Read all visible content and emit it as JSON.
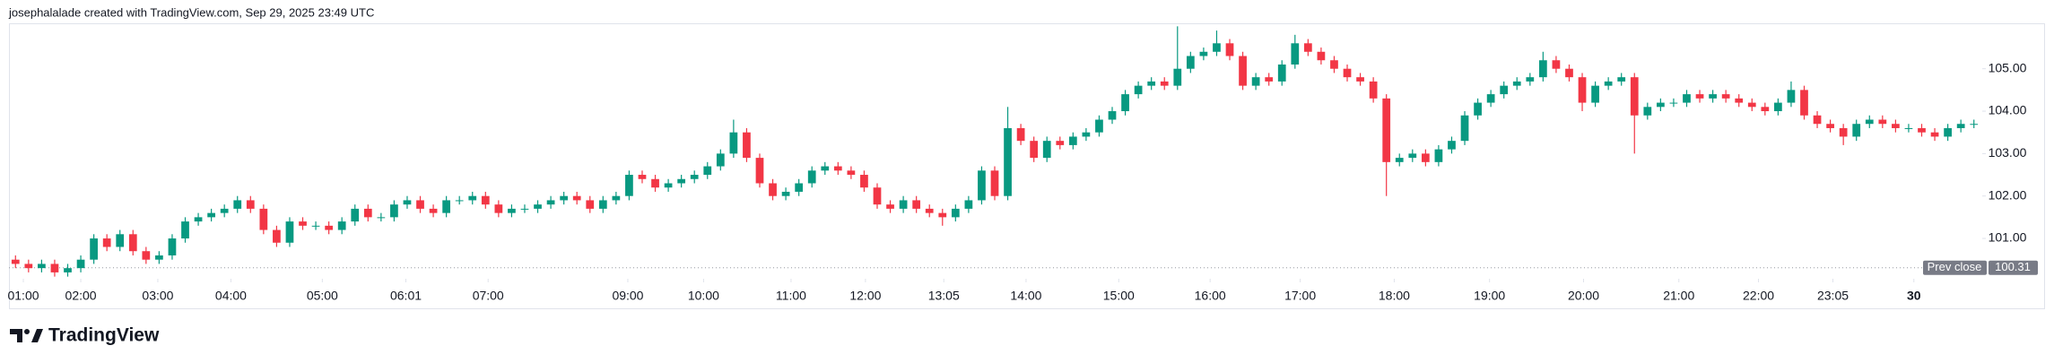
{
  "chart_data": {
    "type": "candlestick",
    "title": "josephalalade created with TradingView.com, Sep 29, 2025 23:49 UTC",
    "brand": "TradingView",
    "up_color": "#089981",
    "down_color": "#f23645",
    "xlim": [
      0,
      151
    ],
    "ylim": [
      100.05,
      106.05
    ],
    "yticks": [
      {
        "value": 101,
        "label": "101.00"
      },
      {
        "value": 102,
        "label": "102.00"
      },
      {
        "value": 103,
        "label": "103.00"
      },
      {
        "value": 104,
        "label": "104.00"
      },
      {
        "value": 105,
        "label": "105.00"
      }
    ],
    "xticks": [
      {
        "value": 1.1,
        "label": "01:00"
      },
      {
        "value": 5.5,
        "label": "02:00"
      },
      {
        "value": 11.4,
        "label": "03:00"
      },
      {
        "value": 17,
        "label": "04:00"
      },
      {
        "value": 24,
        "label": "05:00"
      },
      {
        "value": 30.4,
        "label": "06:01"
      },
      {
        "value": 36.7,
        "label": "07:00"
      },
      {
        "value": 47.4,
        "label": "09:00"
      },
      {
        "value": 53.2,
        "label": "10:00"
      },
      {
        "value": 59.9,
        "label": "11:00"
      },
      {
        "value": 65.6,
        "label": "12:00"
      },
      {
        "value": 71.6,
        "label": "13:05"
      },
      {
        "value": 77.9,
        "label": "14:00"
      },
      {
        "value": 85,
        "label": "15:00"
      },
      {
        "value": 92,
        "label": "16:00"
      },
      {
        "value": 98.9,
        "label": "17:00"
      },
      {
        "value": 106.1,
        "label": "18:00"
      },
      {
        "value": 113.4,
        "label": "19:00"
      },
      {
        "value": 120.6,
        "label": "20:00"
      },
      {
        "value": 127.9,
        "label": "21:00"
      },
      {
        "value": 134,
        "label": "22:00"
      },
      {
        "value": 139.7,
        "label": "23:05"
      },
      {
        "value": 145.9,
        "label": "30",
        "bold": true
      }
    ],
    "prev_close": {
      "label": "Prev close",
      "value": 100.31
    },
    "open": [
      100.5,
      100.4,
      100.3,
      100.4,
      100.2,
      100.3,
      100.5,
      101.0,
      100.8,
      101.1,
      100.7,
      100.5,
      100.6,
      101.0,
      101.4,
      101.5,
      101.6,
      101.7,
      101.9,
      101.7,
      101.2,
      100.9,
      101.4,
      101.3,
      101.3,
      101.2,
      101.4,
      101.7,
      101.5,
      101.5,
      101.8,
      101.9,
      101.7,
      101.6,
      101.9,
      101.9,
      102.0,
      101.8,
      101.6,
      101.7,
      101.7,
      101.8,
      101.9,
      102.0,
      101.9,
      101.7,
      101.9,
      102.0,
      102.5,
      102.4,
      102.2,
      102.3,
      102.4,
      102.5,
      102.7,
      103.0,
      103.5,
      102.9,
      102.3,
      102.0,
      102.1,
      102.3,
      102.6,
      102.7,
      102.6,
      102.5,
      102.2,
      101.8,
      101.7,
      101.9,
      101.7,
      101.6,
      101.5,
      101.7,
      101.9,
      102.6,
      102.0,
      103.6,
      103.3,
      102.9,
      103.3,
      103.2,
      103.4,
      103.5,
      103.8,
      104.0,
      104.4,
      104.6,
      104.7,
      104.6,
      105.0,
      105.3,
      105.4,
      105.6,
      105.3,
      104.6,
      104.8,
      104.7,
      105.1,
      105.6,
      105.4,
      105.2,
      105.0,
      104.8,
      104.7,
      104.3,
      102.8,
      102.9,
      103.0,
      102.8,
      103.1,
      103.3,
      103.9,
      104.2,
      104.4,
      104.6,
      104.7,
      104.8,
      105.2,
      105.0,
      104.8,
      104.2,
      104.6,
      104.7,
      104.8,
      103.9,
      104.1,
      104.2,
      104.2,
      104.4,
      104.3,
      104.4,
      104.3,
      104.2,
      104.1,
      104.0,
      104.2,
      104.5,
      103.9,
      103.7,
      103.6,
      103.4,
      103.7,
      103.8,
      103.7,
      103.6,
      103.6,
      103.5,
      103.4,
      103.6,
      103.7
    ],
    "high": [
      100.6,
      100.5,
      100.5,
      100.5,
      100.4,
      100.6,
      101.1,
      101.1,
      101.2,
      101.2,
      100.8,
      100.7,
      101.1,
      101.5,
      101.6,
      101.7,
      101.8,
      102.0,
      102.0,
      101.8,
      101.3,
      101.5,
      101.5,
      101.4,
      101.4,
      101.5,
      101.8,
      101.8,
      101.6,
      101.9,
      102.0,
      102.0,
      101.8,
      102.0,
      102.0,
      102.1,
      102.1,
      101.9,
      101.8,
      101.8,
      101.9,
      102.0,
      102.1,
      102.1,
      102.0,
      102.0,
      102.1,
      102.6,
      102.6,
      102.5,
      102.4,
      102.5,
      102.6,
      102.8,
      103.1,
      103.8,
      103.6,
      103.0,
      102.4,
      102.2,
      102.4,
      102.7,
      102.8,
      102.8,
      102.7,
      102.6,
      102.3,
      101.9,
      102.0,
      102.0,
      101.8,
      101.7,
      101.8,
      102.0,
      102.7,
      102.7,
      104.1,
      103.7,
      103.4,
      103.4,
      103.4,
      103.5,
      103.6,
      103.9,
      104.1,
      104.5,
      104.7,
      104.8,
      104.8,
      106.0,
      105.4,
      105.5,
      105.9,
      105.7,
      105.4,
      104.9,
      104.9,
      105.2,
      105.8,
      105.7,
      105.5,
      105.3,
      105.1,
      104.9,
      104.8,
      104.4,
      103.0,
      103.1,
      103.1,
      103.2,
      103.4,
      104.0,
      104.3,
      104.5,
      104.7,
      104.8,
      104.9,
      105.4,
      105.3,
      105.1,
      104.9,
      104.7,
      104.8,
      104.9,
      104.9,
      104.2,
      104.3,
      104.3,
      104.5,
      104.5,
      104.5,
      104.5,
      104.4,
      104.3,
      104.2,
      104.3,
      104.7,
      104.6,
      104.0,
      103.8,
      103.7,
      103.8,
      103.9,
      103.9,
      103.8,
      103.7,
      103.7,
      103.6,
      103.7,
      103.8,
      103.8
    ],
    "low": [
      100.3,
      100.2,
      100.2,
      100.1,
      100.1,
      100.2,
      100.4,
      100.7,
      100.7,
      100.6,
      100.4,
      100.4,
      100.5,
      100.9,
      101.3,
      101.4,
      101.5,
      101.6,
      101.6,
      101.1,
      100.8,
      100.8,
      101.2,
      101.2,
      101.1,
      101.1,
      101.3,
      101.4,
      101.4,
      101.4,
      101.7,
      101.6,
      101.5,
      101.5,
      101.8,
      101.8,
      101.7,
      101.5,
      101.5,
      101.6,
      101.6,
      101.7,
      101.8,
      101.8,
      101.6,
      101.6,
      101.8,
      101.9,
      102.3,
      102.1,
      102.1,
      102.2,
      102.3,
      102.4,
      102.6,
      102.9,
      102.8,
      102.2,
      101.9,
      101.9,
      102.0,
      102.2,
      102.5,
      102.5,
      102.4,
      102.1,
      101.7,
      101.6,
      101.6,
      101.6,
      101.5,
      101.3,
      101.4,
      101.6,
      101.8,
      101.9,
      101.9,
      103.2,
      102.8,
      102.8,
      103.1,
      103.1,
      103.3,
      103.4,
      103.7,
      103.9,
      104.3,
      104.5,
      104.5,
      104.5,
      104.9,
      105.2,
      105.3,
      105.2,
      104.5,
      104.5,
      104.6,
      104.6,
      105.0,
      105.3,
      105.1,
      104.9,
      104.7,
      104.6,
      104.2,
      102.0,
      102.7,
      102.8,
      102.7,
      102.7,
      103.0,
      103.2,
      103.8,
      104.1,
      104.3,
      104.5,
      104.6,
      104.7,
      104.9,
      104.7,
      104.0,
      104.1,
      104.5,
      104.6,
      103.0,
      103.8,
      104.0,
      104.1,
      104.1,
      104.2,
      104.2,
      104.2,
      104.1,
      104.0,
      103.9,
      103.9,
      104.1,
      103.8,
      103.6,
      103.5,
      103.2,
      103.3,
      103.6,
      103.6,
      103.5,
      103.5,
      103.4,
      103.3,
      103.3,
      103.5,
      103.6
    ],
    "close": [
      100.4,
      100.3,
      100.4,
      100.2,
      100.3,
      100.5,
      101.0,
      100.8,
      101.1,
      100.7,
      100.5,
      100.6,
      101.0,
      101.4,
      101.5,
      101.6,
      101.7,
      101.9,
      101.7,
      101.2,
      100.9,
      101.4,
      101.3,
      101.3,
      101.2,
      101.4,
      101.7,
      101.5,
      101.5,
      101.8,
      101.9,
      101.7,
      101.6,
      101.9,
      101.9,
      102.0,
      101.8,
      101.6,
      101.7,
      101.7,
      101.8,
      101.9,
      102.0,
      101.9,
      101.7,
      101.9,
      102.0,
      102.5,
      102.4,
      102.2,
      102.3,
      102.4,
      102.5,
      102.7,
      103.0,
      103.5,
      102.9,
      102.3,
      102.0,
      102.1,
      102.3,
      102.6,
      102.7,
      102.6,
      102.5,
      102.2,
      101.8,
      101.7,
      101.9,
      101.7,
      101.6,
      101.5,
      101.7,
      101.9,
      102.6,
      102.0,
      103.6,
      103.3,
      102.9,
      103.3,
      103.2,
      103.4,
      103.5,
      103.8,
      104.0,
      104.4,
      104.6,
      104.7,
      104.6,
      105.0,
      105.3,
      105.4,
      105.6,
      105.3,
      104.6,
      104.8,
      104.7,
      105.1,
      105.6,
      105.4,
      105.2,
      105.0,
      104.8,
      104.7,
      104.3,
      102.8,
      102.9,
      103.0,
      102.8,
      103.1,
      103.3,
      103.9,
      104.2,
      104.4,
      104.6,
      104.7,
      104.8,
      105.2,
      105.0,
      104.8,
      104.2,
      104.6,
      104.7,
      104.8,
      103.9,
      104.1,
      104.2,
      104.2,
      104.4,
      104.3,
      104.4,
      104.3,
      104.2,
      104.1,
      104.0,
      104.2,
      104.5,
      103.9,
      103.7,
      103.6,
      103.4,
      103.7,
      103.8,
      103.7,
      103.6,
      103.6,
      103.5,
      103.4,
      103.6,
      103.7,
      103.7
    ]
  }
}
